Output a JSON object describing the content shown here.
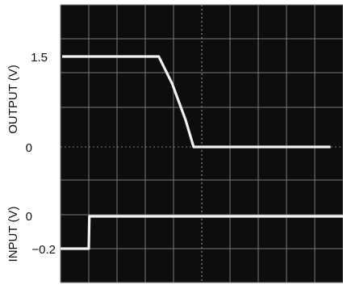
{
  "chart_data": {
    "type": "line",
    "title": "",
    "colors": {
      "screen": "#0d0d0d",
      "grid": "#7a7a7a",
      "trace": "#f2f2f2",
      "labels": "#111111"
    },
    "grid": {
      "divisions_x": 10,
      "divisions_y": 8,
      "show": true
    },
    "x": {
      "label": "",
      "range": [
        0,
        10
      ]
    },
    "panels": [
      {
        "name": "output",
        "ylabel": "OUTPUT (V)",
        "ylim": [
          0,
          1.5
        ],
        "y_ticks": [
          {
            "value": 1.5,
            "label": "1.5"
          },
          {
            "value": 0,
            "label": "0"
          }
        ],
        "series": [
          {
            "x": [
              0,
              3.6,
              4.1,
              4.6,
              4.9,
              10
            ],
            "y": [
              1.5,
              1.5,
              1.05,
              0.45,
              0,
              0
            ]
          }
        ]
      },
      {
        "name": "input",
        "ylabel": "INPUT (V)",
        "ylim": [
          -0.2,
          0
        ],
        "y_ticks": [
          {
            "value": 0,
            "label": "0"
          },
          {
            "value": -0.2,
            "label": "−0.2"
          }
        ],
        "series": [
          {
            "x": [
              0,
              1.0,
              1.02,
              10
            ],
            "y": [
              -0.2,
              -0.2,
              0,
              0
            ]
          }
        ]
      }
    ]
  }
}
